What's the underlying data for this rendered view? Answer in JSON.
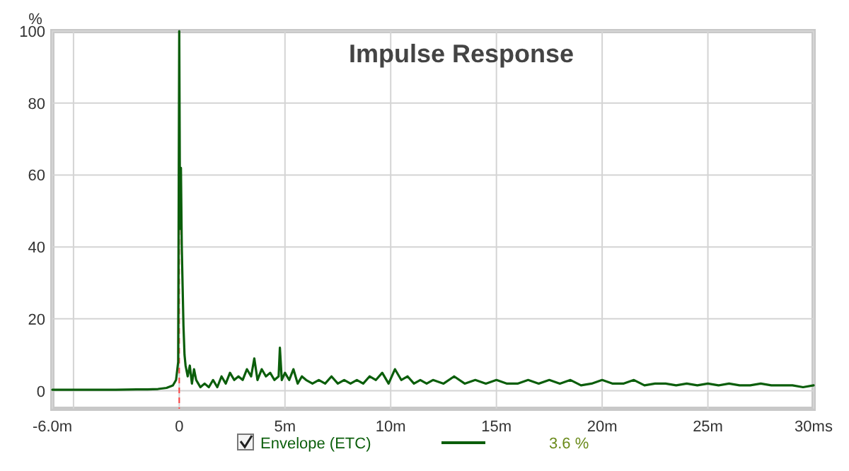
{
  "chart_data": {
    "type": "line",
    "title": "Impulse Response",
    "ylabel": "%",
    "xlim": [
      -6,
      30
    ],
    "ylim": [
      -5,
      100
    ],
    "xticks": [
      {
        "value": -6,
        "label": "-6.0m"
      },
      {
        "value": -5,
        "label": null
      },
      {
        "value": 0,
        "label": "0"
      },
      {
        "value": 5,
        "label": "5m"
      },
      {
        "value": 10,
        "label": "10m"
      },
      {
        "value": 15,
        "label": "15m"
      },
      {
        "value": 20,
        "label": "20m"
      },
      {
        "value": 25,
        "label": "25m"
      },
      {
        "value": 30,
        "label": "30ms"
      }
    ],
    "yticks": [
      0,
      20,
      40,
      60,
      80,
      100
    ],
    "grid": true,
    "legend": "bottom",
    "line_style": "solid",
    "marker": "none",
    "ref_lines": [
      {
        "axis": "x",
        "value": 0,
        "color": "#ff4040",
        "line_style": "dashed"
      }
    ],
    "annotations": [
      "3.6 %"
    ],
    "series": [
      {
        "name": "Envelope (ETC)",
        "color": "#0b5e0b",
        "x": [
          -6,
          -5,
          -4,
          -3,
          -2,
          -1.5,
          -1,
          -0.6,
          -0.3,
          -0.15,
          -0.05,
          0,
          0.04,
          0.08,
          0.12,
          0.16,
          0.2,
          0.25,
          0.3,
          0.4,
          0.5,
          0.6,
          0.7,
          0.8,
          0.9,
          1.0,
          1.2,
          1.4,
          1.6,
          1.8,
          2.0,
          2.2,
          2.4,
          2.6,
          2.8,
          3.0,
          3.2,
          3.4,
          3.55,
          3.7,
          3.9,
          4.1,
          4.3,
          4.5,
          4.7,
          4.76,
          4.85,
          5.0,
          5.2,
          5.4,
          5.6,
          5.8,
          6.0,
          6.3,
          6.6,
          6.9,
          7.2,
          7.5,
          7.8,
          8.1,
          8.4,
          8.7,
          9.0,
          9.3,
          9.6,
          9.9,
          10.2,
          10.5,
          10.8,
          11.1,
          11.4,
          11.7,
          12,
          12.5,
          13,
          13.5,
          14,
          14.5,
          15,
          15.5,
          16,
          16.5,
          17,
          17.5,
          18,
          18.5,
          19,
          19.5,
          20,
          20.5,
          21,
          21.5,
          22,
          22.5,
          23,
          23.5,
          24,
          24.5,
          25,
          25.5,
          26,
          26.5,
          27,
          27.5,
          28,
          28.5,
          29,
          29.5,
          30
        ],
        "values": [
          0.3,
          0.3,
          0.3,
          0.3,
          0.4,
          0.4,
          0.5,
          0.8,
          1.5,
          3,
          8,
          100,
          45,
          62,
          40,
          29,
          18,
          10,
          7,
          4,
          7,
          2,
          6,
          3,
          2,
          1,
          2,
          1,
          3,
          1,
          4,
          2,
          5,
          3,
          4,
          3,
          6,
          4,
          9,
          3,
          6,
          4,
          5,
          3,
          4,
          12,
          3,
          5,
          3,
          6,
          2,
          4,
          3,
          2,
          3,
          2,
          4,
          2,
          3,
          2,
          3,
          2,
          4,
          3,
          5,
          2,
          6,
          3,
          4,
          2,
          3,
          2,
          3,
          2,
          4,
          2,
          3,
          2,
          3,
          2,
          2,
          3,
          2,
          3,
          2,
          3,
          1.5,
          2,
          3,
          2,
          2,
          3,
          1.5,
          2,
          2,
          1.5,
          2,
          1.5,
          2,
          1.5,
          2,
          1.5,
          1.5,
          2,
          1.5,
          1.5,
          1.5,
          1,
          1.5
        ]
      }
    ]
  }
}
